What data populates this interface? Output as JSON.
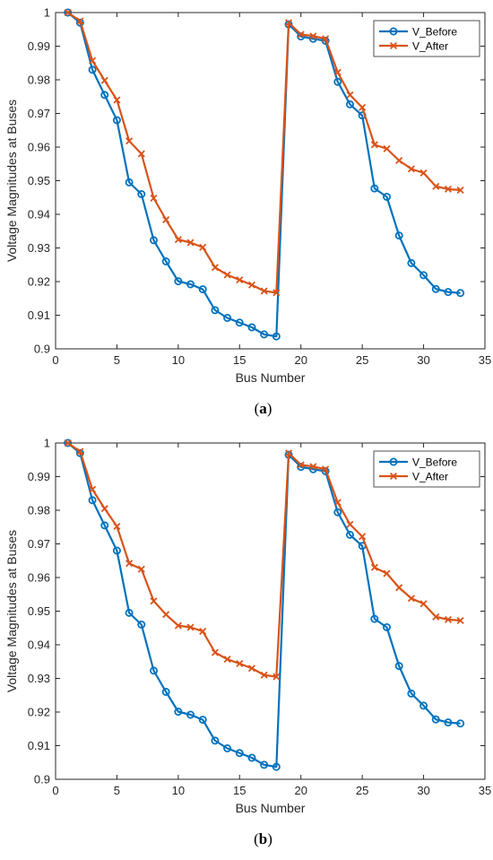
{
  "colors": {
    "before": "#0072BD",
    "after": "#D95319",
    "axis": "#262626"
  },
  "chart_data": [
    {
      "type": "line",
      "caption": "(a)",
      "caption_letter": "a",
      "xlabel": "Bus Number",
      "ylabel": "Voltage Magnitudes at Buses",
      "xlim": [
        0,
        35
      ],
      "ylim": [
        0.9,
        1.0
      ],
      "xticks": [
        0,
        5,
        10,
        15,
        20,
        25,
        30,
        35
      ],
      "yticks": [
        0.9,
        0.91,
        0.92,
        0.93,
        0.94,
        0.95,
        0.96,
        0.97,
        0.98,
        0.99,
        1
      ],
      "ytick_labels": [
        "0.9",
        "0.91",
        "0.92",
        "0.93",
        "0.94",
        "0.95",
        "0.96",
        "0.97",
        "0.98",
        "0.99",
        "1"
      ],
      "grid": false,
      "legend_position": "top-right",
      "x": [
        1,
        2,
        3,
        4,
        5,
        6,
        7,
        8,
        9,
        10,
        11,
        12,
        13,
        14,
        15,
        16,
        17,
        18,
        19,
        20,
        21,
        22,
        23,
        24,
        25,
        26,
        27,
        28,
        29,
        30,
        31,
        32,
        33
      ],
      "series": [
        {
          "name": "V_Before",
          "marker": "circle",
          "values": [
            1.0,
            0.997,
            0.983,
            0.9755,
            0.968,
            0.9495,
            0.946,
            0.9323,
            0.926,
            0.9201,
            0.9192,
            0.9177,
            0.9115,
            0.9092,
            0.9078,
            0.9064,
            0.9043,
            0.9037,
            0.9965,
            0.9929,
            0.9922,
            0.9916,
            0.9794,
            0.9727,
            0.9694,
            0.9477,
            0.9452,
            0.9337,
            0.9255,
            0.9219,
            0.9178,
            0.9169,
            0.9166
          ]
        },
        {
          "name": "V_After",
          "marker": "x",
          "values": [
            1.0,
            0.9975,
            0.9857,
            0.9798,
            0.974,
            0.9618,
            0.958,
            0.9448,
            0.9384,
            0.9325,
            0.9316,
            0.9302,
            0.9242,
            0.922,
            0.9205,
            0.919,
            0.9172,
            0.9167,
            0.997,
            0.9935,
            0.993,
            0.9922,
            0.9822,
            0.9755,
            0.9718,
            0.9607,
            0.9595,
            0.956,
            0.9535,
            0.9523,
            0.9483,
            0.9475,
            0.9472
          ]
        }
      ]
    },
    {
      "type": "line",
      "caption": "(b)",
      "caption_letter": "b",
      "xlabel": "Bus Number",
      "ylabel": "Voltage Magnitudes at Buses",
      "xlim": [
        0,
        35
      ],
      "ylim": [
        0.9,
        1.0
      ],
      "xticks": [
        0,
        5,
        10,
        15,
        20,
        25,
        30,
        35
      ],
      "yticks": [
        0.9,
        0.91,
        0.92,
        0.93,
        0.94,
        0.95,
        0.96,
        0.97,
        0.98,
        0.99,
        1
      ],
      "ytick_labels": [
        "0.9",
        "0.91",
        "0.92",
        "0.93",
        "0.94",
        "0.95",
        "0.96",
        "0.97",
        "0.98",
        "0.99",
        "1"
      ],
      "grid": false,
      "legend_position": "top-right",
      "x": [
        1,
        2,
        3,
        4,
        5,
        6,
        7,
        8,
        9,
        10,
        11,
        12,
        13,
        14,
        15,
        16,
        17,
        18,
        19,
        20,
        21,
        22,
        23,
        24,
        25,
        26,
        27,
        28,
        29,
        30,
        31,
        32,
        33
      ],
      "series": [
        {
          "name": "V_Before",
          "marker": "circle",
          "values": [
            1.0,
            0.997,
            0.983,
            0.9755,
            0.968,
            0.9495,
            0.946,
            0.9323,
            0.926,
            0.9201,
            0.9192,
            0.9177,
            0.9115,
            0.9092,
            0.9078,
            0.9064,
            0.9043,
            0.9037,
            0.9965,
            0.9929,
            0.9922,
            0.9916,
            0.9794,
            0.9727,
            0.9694,
            0.9477,
            0.9452,
            0.9337,
            0.9255,
            0.9219,
            0.9178,
            0.9169,
            0.9166
          ]
        },
        {
          "name": "V_After",
          "marker": "x",
          "values": [
            1.0,
            0.9975,
            0.9862,
            0.9805,
            0.9752,
            0.9642,
            0.9625,
            0.953,
            0.949,
            0.9457,
            0.9452,
            0.944,
            0.9377,
            0.9357,
            0.9344,
            0.933,
            0.931,
            0.9305,
            0.997,
            0.9935,
            0.993,
            0.9922,
            0.9823,
            0.9758,
            0.9722,
            0.963,
            0.9612,
            0.957,
            0.9538,
            0.9522,
            0.9483,
            0.9475,
            0.9472
          ]
        }
      ]
    }
  ]
}
